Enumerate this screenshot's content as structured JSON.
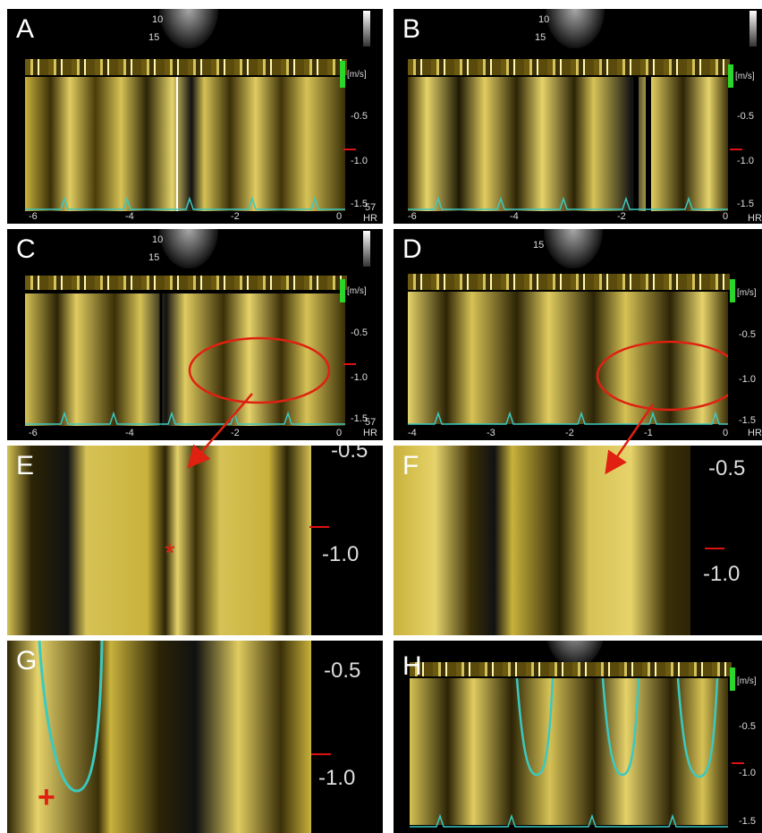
{
  "panels": {
    "a": {
      "label": "A"
    },
    "b": {
      "label": "B"
    },
    "c": {
      "label": "C"
    },
    "d": {
      "label": "D"
    },
    "e": {
      "label": "E",
      "marker": "*"
    },
    "f": {
      "label": "F"
    },
    "g": {
      "label": "G",
      "marker": "+"
    },
    "h": {
      "label": "H"
    }
  },
  "axis": {
    "unit": "[m/s]",
    "y_ticks": [
      "-0.5",
      "-1.0",
      "-1.5"
    ],
    "zoom_ticks": [
      "-0.5",
      "-1.0"
    ],
    "x_ticks_ab": [
      "-6",
      "-4",
      "-2",
      "0"
    ],
    "x_ticks_d": [
      "-4",
      "-3",
      "-2",
      "-1",
      "0"
    ],
    "hr_label": "HR",
    "hr_value": "57",
    "echo_depth_1": "10",
    "echo_depth_2": "15",
    "scale_top": "0.5"
  },
  "colors": {
    "doppler": "#d8c24a",
    "trace": "#3cc9c0",
    "annotation": "#e02010",
    "velocity_bar": "#2bd62b"
  }
}
